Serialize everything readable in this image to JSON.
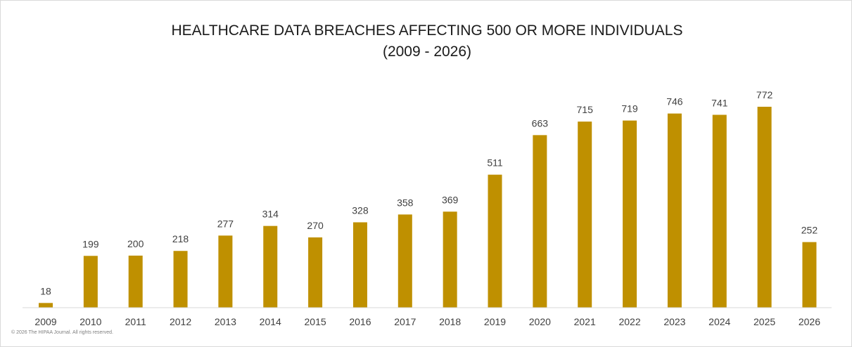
{
  "chart_data": {
    "type": "bar",
    "title": "HEALTHCARE DATA BREACHES AFFECTING 500 OR MORE INDIVIDUALS",
    "subtitle": "(2009 - 2026)",
    "categories": [
      "2009",
      "2010",
      "2011",
      "2012",
      "2013",
      "2014",
      "2015",
      "2016",
      "2017",
      "2018",
      "2019",
      "2020",
      "2021",
      "2022",
      "2023",
      "2024",
      "2025",
      "2026"
    ],
    "series": [
      {
        "values": [
          18,
          199,
          200,
          218,
          277,
          314,
          270,
          328,
          358,
          369,
          511,
          663,
          715,
          719,
          746,
          741,
          772,
          252
        ]
      }
    ],
    "data_labels": [
      "18",
      "199",
      "200",
      "218",
      "277",
      "314",
      "270",
      "328",
      "358",
      "369",
      "511",
      "663",
      "715",
      "719",
      "746",
      "741",
      "772",
      "252"
    ],
    "xlabel": "",
    "ylabel": "",
    "ylim": [
      0,
      850
    ],
    "grid": false,
    "legend": "none",
    "bar_color": "#bf9000",
    "copyright": "© 2026 The HIPAA Journal. All rights reserved."
  }
}
